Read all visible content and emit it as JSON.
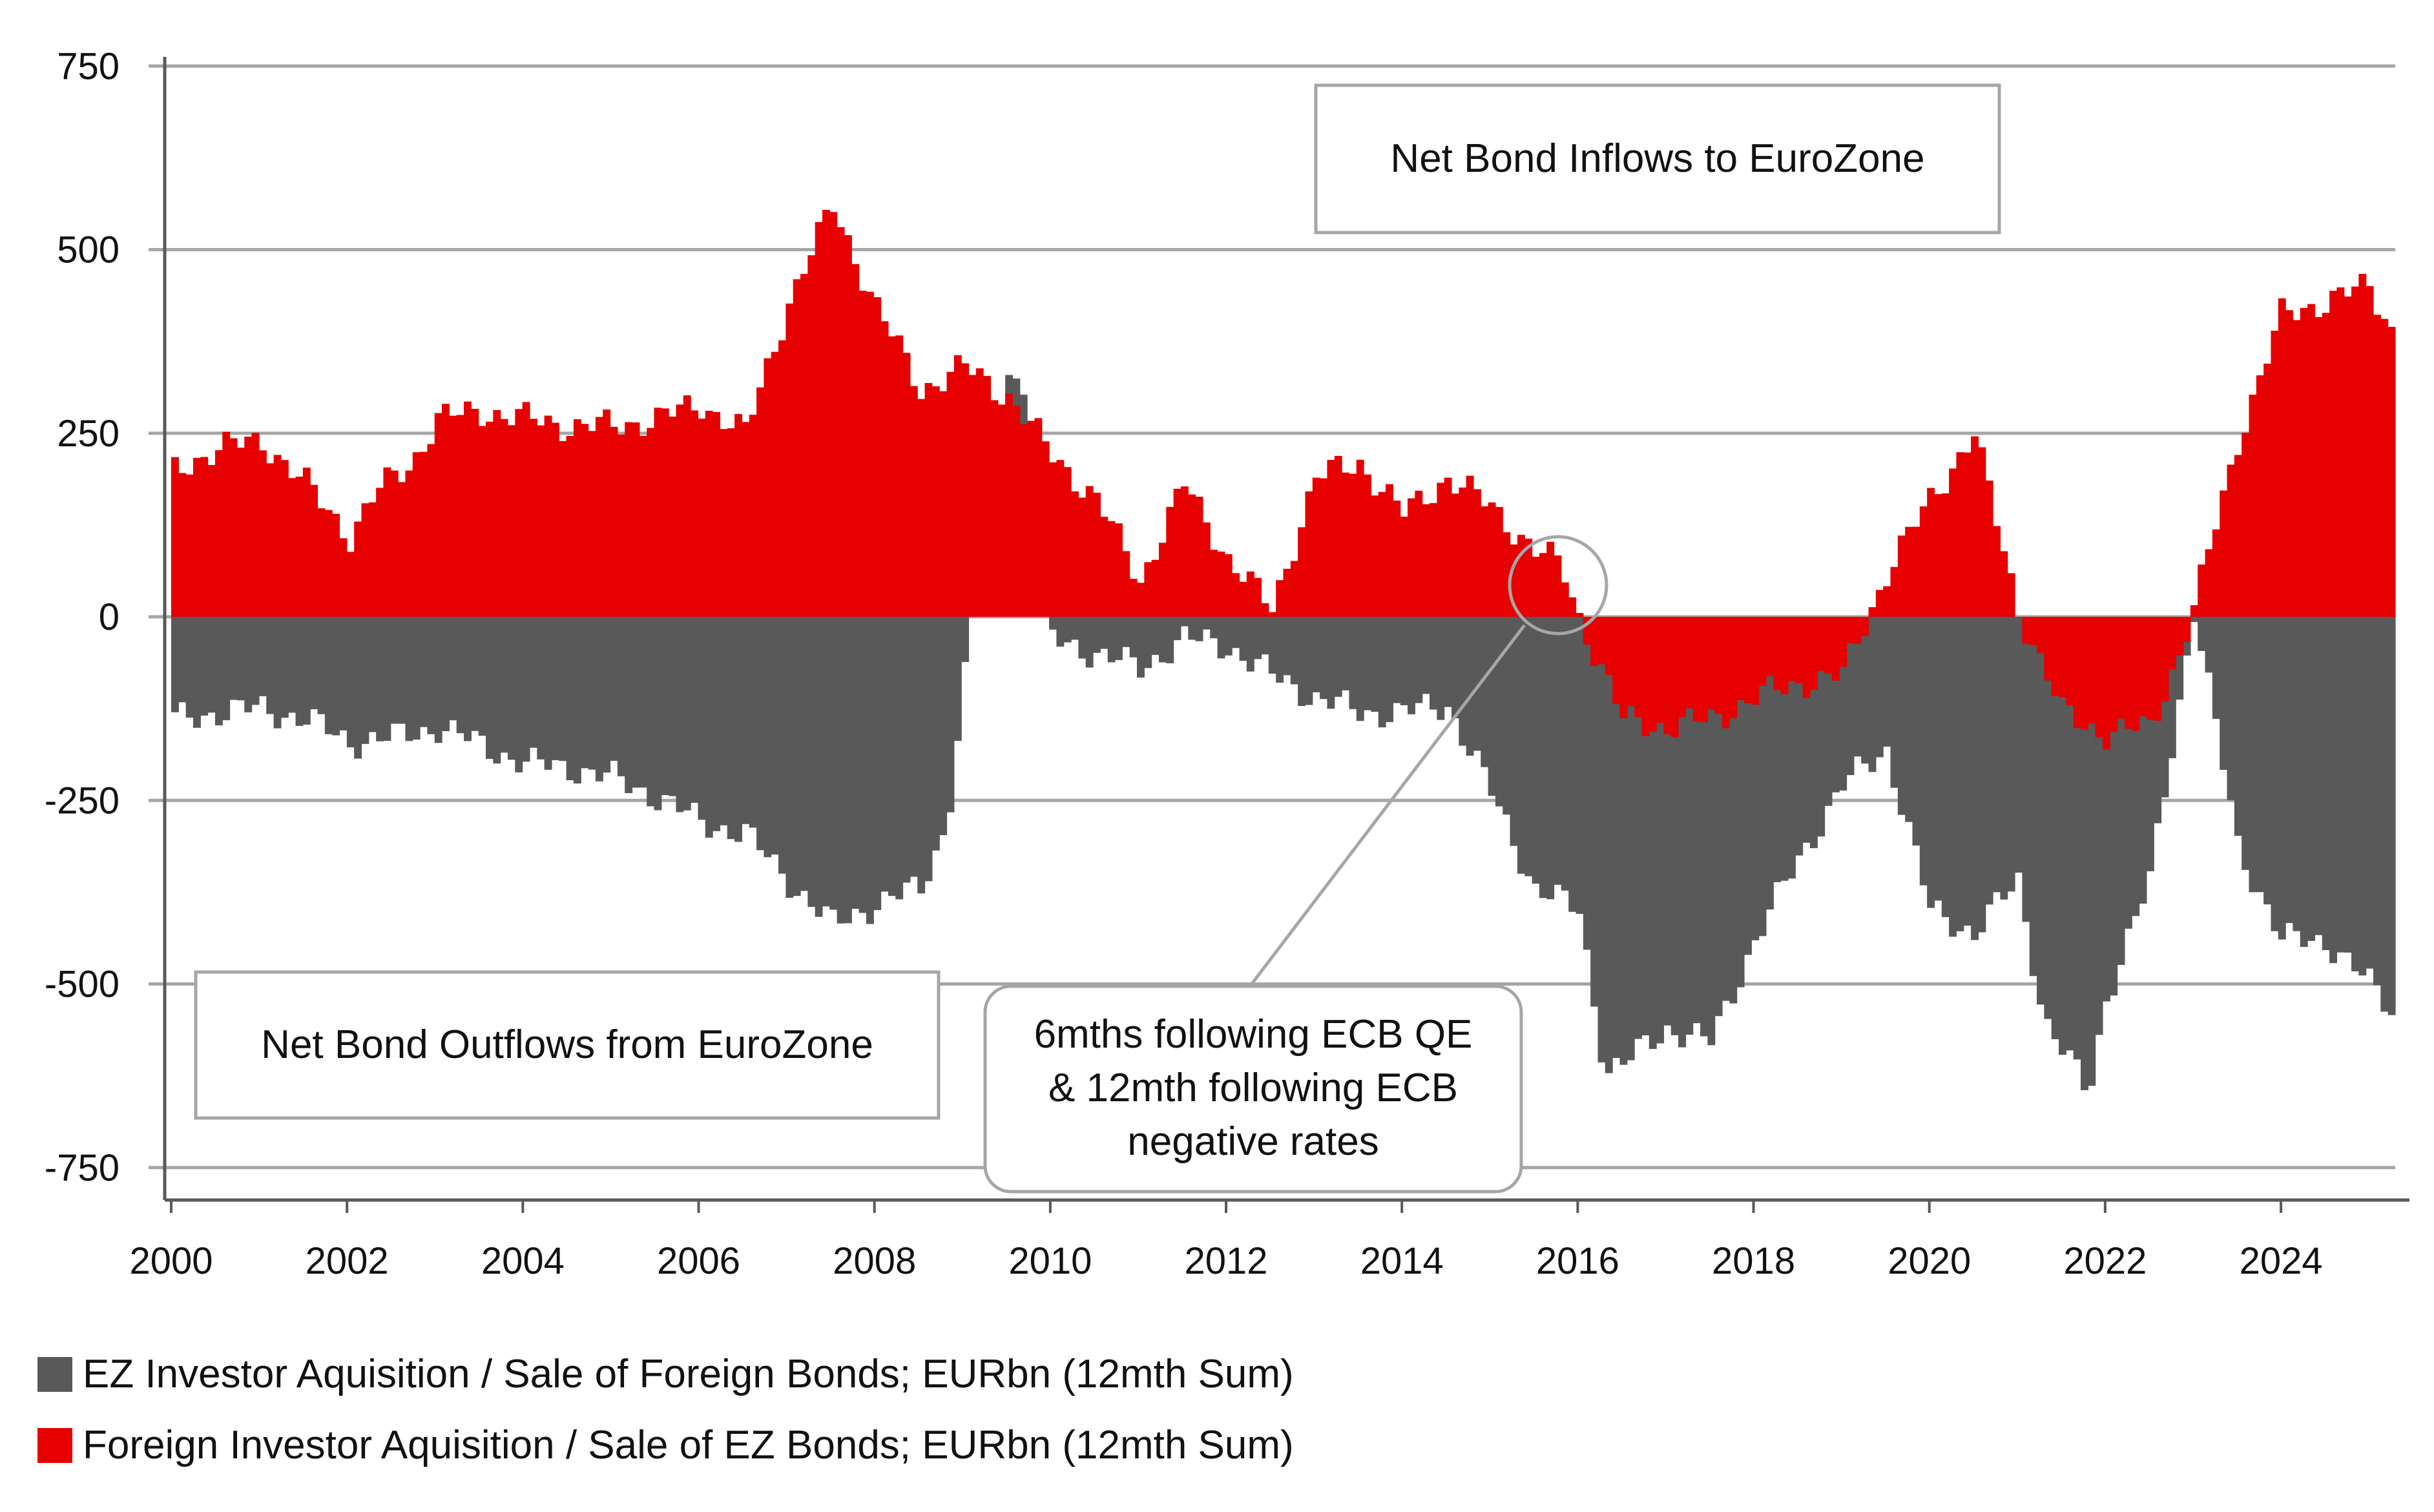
{
  "chart_data": {
    "type": "bar",
    "stacked": false,
    "title": "",
    "xlabel": "",
    "ylabel": "",
    "ylim": [
      -750,
      750
    ],
    "yticks": [
      750,
      500,
      250,
      0,
      -250,
      -500,
      -750
    ],
    "ytick_labels": [
      "750",
      "500",
      "250",
      "0",
      "-250",
      "-500",
      "-750"
    ],
    "xlim": [
      2000,
      2025.3
    ],
    "xticks": [
      2000,
      2002,
      2004,
      2006,
      2008,
      2010,
      2012,
      2014,
      2016,
      2018,
      2020,
      2022,
      2024
    ],
    "xtick_labels": [
      "2000",
      "2002",
      "2004",
      "2006",
      "2008",
      "2010",
      "2012",
      "2014",
      "2016",
      "2018",
      "2020",
      "2022",
      "2024"
    ],
    "grid": "horizontal",
    "legend_position": "bottom-left",
    "series": [
      {
        "name": "EZ Investor Aquisition / Sale of Foreign Bonds; EURbn (12mth Sum)",
        "color": "#595959",
        "points": [
          [
            2000.0,
            -140
          ],
          [
            2000.5,
            -130
          ],
          [
            2001.0,
            -125
          ],
          [
            2001.5,
            -140
          ],
          [
            2002.0,
            -170
          ],
          [
            2002.5,
            -165
          ],
          [
            2003.0,
            -150
          ],
          [
            2003.5,
            -175
          ],
          [
            2004.0,
            -200
          ],
          [
            2004.5,
            -205
          ],
          [
            2005.0,
            -220
          ],
          [
            2005.5,
            -245
          ],
          [
            2006.0,
            -280
          ],
          [
            2006.5,
            -295
          ],
          [
            2007.0,
            -360
          ],
          [
            2007.5,
            -420
          ],
          [
            2008.0,
            -390
          ],
          [
            2008.5,
            -370
          ],
          [
            2008.8,
            -280
          ],
          [
            2009.0,
            -80
          ],
          [
            2009.5,
            350
          ],
          [
            2009.8,
            260
          ],
          [
            2010.0,
            -30
          ],
          [
            2010.5,
            -50
          ],
          [
            2011.0,
            -70
          ],
          [
            2011.5,
            -30
          ],
          [
            2012.0,
            -40
          ],
          [
            2012.5,
            -80
          ],
          [
            2013.0,
            -110
          ],
          [
            2013.5,
            -130
          ],
          [
            2014.0,
            -130
          ],
          [
            2014.5,
            -120
          ],
          [
            2015.0,
            -240
          ],
          [
            2015.5,
            -370
          ],
          [
            2016.0,
            -400
          ],
          [
            2016.3,
            -620
          ],
          [
            2016.5,
            -610
          ],
          [
            2017.0,
            -560
          ],
          [
            2017.5,
            -580
          ],
          [
            2018.0,
            -440
          ],
          [
            2018.5,
            -330
          ],
          [
            2019.0,
            -230
          ],
          [
            2019.5,
            -180
          ],
          [
            2020.0,
            -400
          ],
          [
            2020.5,
            -430
          ],
          [
            2021.0,
            -360
          ],
          [
            2021.3,
            -550
          ],
          [
            2021.8,
            -650
          ],
          [
            2022.0,
            -520
          ],
          [
            2022.5,
            -360
          ],
          [
            2023.0,
            10
          ],
          [
            2023.5,
            -310
          ],
          [
            2024.0,
            -440
          ],
          [
            2024.5,
            -440
          ],
          [
            2025.0,
            -500
          ],
          [
            2025.3,
            -540
          ]
        ]
      },
      {
        "name": "Foreign Investor Aquisition / Sale of EZ Bonds; EURbn (12mth Sum)",
        "color": "#e60000",
        "points": [
          [
            2000.0,
            200
          ],
          [
            2000.5,
            230
          ],
          [
            2001.0,
            240
          ],
          [
            2001.5,
            180
          ],
          [
            2002.0,
            110
          ],
          [
            2002.3,
            170
          ],
          [
            2002.7,
            210
          ],
          [
            2003.0,
            270
          ],
          [
            2003.5,
            280
          ],
          [
            2004.0,
            270
          ],
          [
            2004.5,
            260
          ],
          [
            2005.0,
            260
          ],
          [
            2005.5,
            270
          ],
          [
            2006.0,
            290
          ],
          [
            2006.5,
            250
          ],
          [
            2007.0,
            430
          ],
          [
            2007.5,
            560
          ],
          [
            2008.0,
            420
          ],
          [
            2008.5,
            310
          ],
          [
            2009.0,
            340
          ],
          [
            2009.5,
            300
          ],
          [
            2010.0,
            220
          ],
          [
            2010.5,
            160
          ],
          [
            2011.0,
            50
          ],
          [
            2011.5,
            180
          ],
          [
            2012.0,
            80
          ],
          [
            2012.5,
            10
          ],
          [
            2013.0,
            190
          ],
          [
            2013.5,
            210
          ],
          [
            2014.0,
            140
          ],
          [
            2014.5,
            190
          ],
          [
            2015.0,
            150
          ],
          [
            2015.5,
            90
          ],
          [
            2015.8,
            70
          ],
          [
            2016.0,
            0
          ],
          [
            2016.5,
            -140
          ],
          [
            2017.0,
            -150
          ],
          [
            2017.5,
            -140
          ],
          [
            2018.0,
            -110
          ],
          [
            2018.5,
            -90
          ],
          [
            2019.0,
            -80
          ],
          [
            2019.5,
            60
          ],
          [
            2020.0,
            160
          ],
          [
            2020.5,
            250
          ],
          [
            2021.0,
            10
          ],
          [
            2021.5,
            -130
          ],
          [
            2022.0,
            -160
          ],
          [
            2022.5,
            -150
          ],
          [
            2022.8,
            -60
          ],
          [
            2023.0,
            10
          ],
          [
            2023.5,
            240
          ],
          [
            2024.0,
            410
          ],
          [
            2024.5,
            430
          ],
          [
            2025.0,
            450
          ],
          [
            2025.3,
            380
          ]
        ]
      }
    ],
    "annotations": [
      {
        "id": "inflows",
        "lines": [
          "Net Bond Inflows to EuroZone"
        ]
      },
      {
        "id": "outflows",
        "lines": [
          "Net Bond Outflows from EuroZone"
        ]
      },
      {
        "id": "ecb",
        "lines": [
          "6mths following ECB QE",
          "& 12mth following ECB",
          "negative rates"
        ],
        "marker_x": 2015.7,
        "marker_y": 50
      }
    ]
  }
}
